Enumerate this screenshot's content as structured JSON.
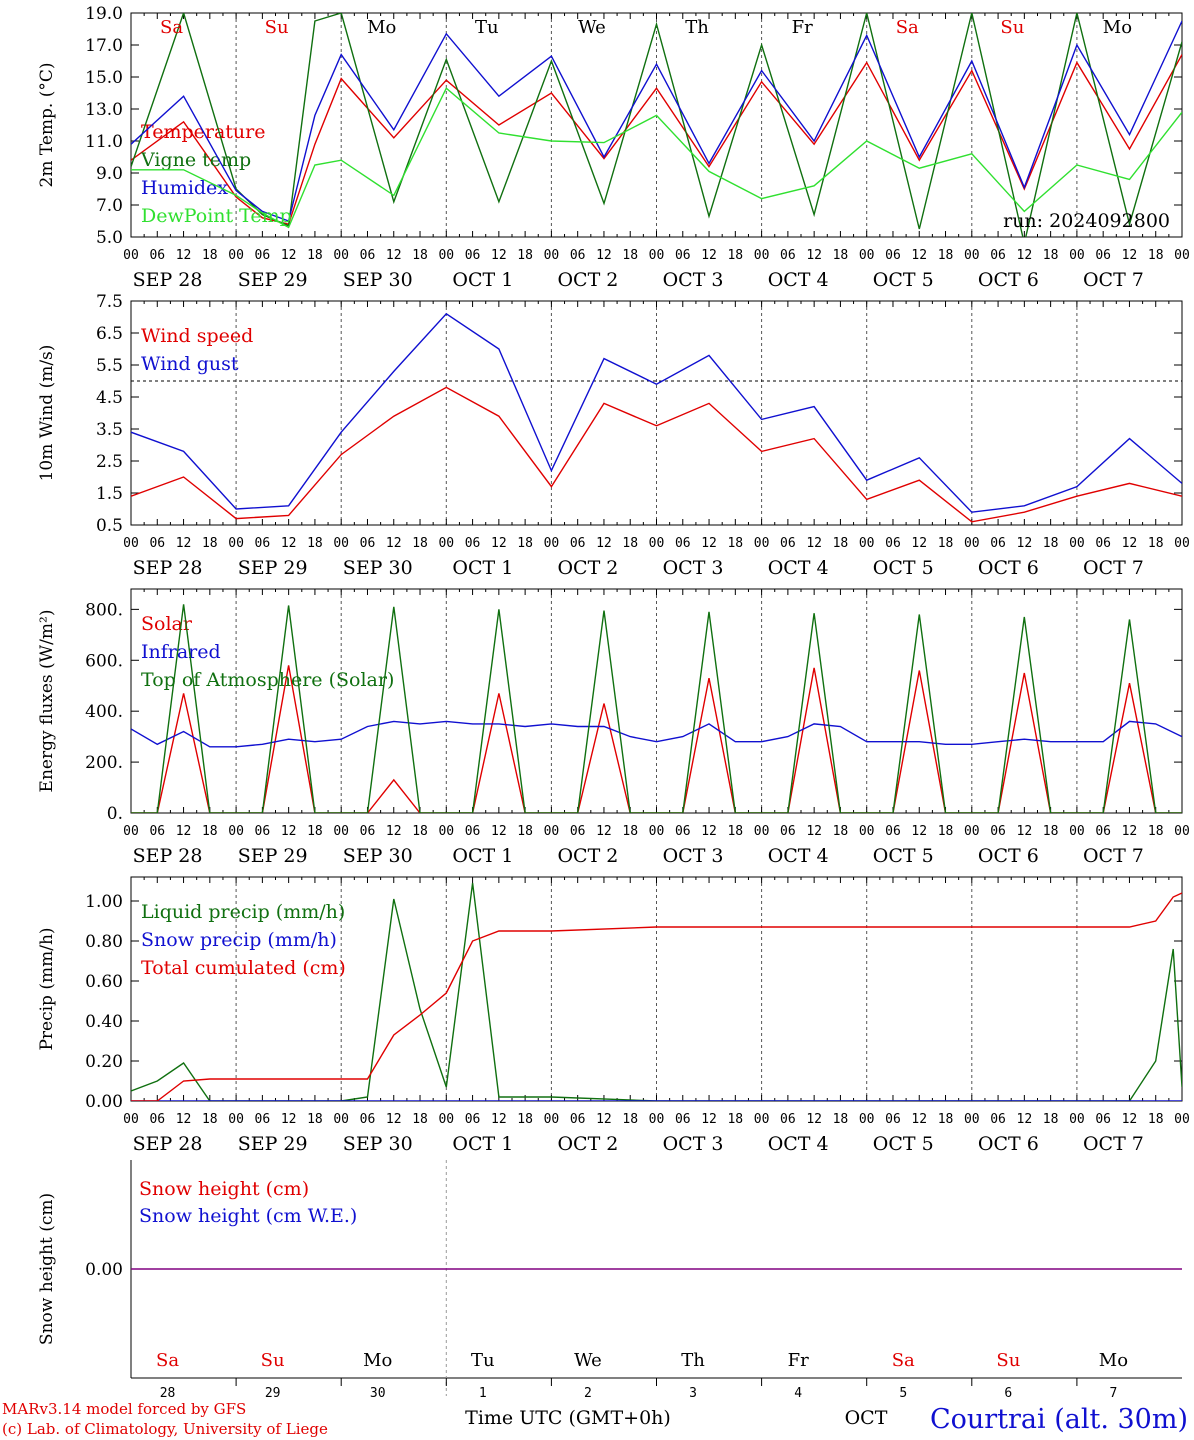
{
  "days": [
    "28",
    "29",
    "30",
    "1",
    "2",
    "3",
    "4",
    "5",
    "6",
    "7"
  ],
  "day_labels": [
    "SEP 28",
    "SEP 29",
    "SEP 30",
    "OCT  1",
    "OCT  2",
    "OCT  3",
    "OCT  4",
    "OCT  5",
    "OCT  6",
    "OCT  7"
  ],
  "weekdays": [
    "Sa",
    "Su",
    "Mo",
    "Tu",
    "We",
    "Th",
    "Fr",
    "Sa",
    "Su",
    "Mo"
  ],
  "weekday_colors": [
    "#e00000",
    "#e00000",
    "#000000",
    "#000000",
    "#000000",
    "#000000",
    "#000000",
    "#e00000",
    "#e00000",
    "#000000"
  ],
  "hour_ticks": [
    "00",
    "06",
    "12",
    "18"
  ],
  "run_label": "run: 2024092800",
  "footer": {
    "model": "MARv3.14 model forced by GFS",
    "lab": "(c) Lab. of Climatology, University of Liege",
    "time_axis": "Time UTC (GMT+0h)",
    "month": "OCT",
    "location": "Courtrai (alt. 30m)"
  },
  "colors": {
    "red": "#e00000",
    "blue": "#1010d0",
    "green": "#107010",
    "lightgreen": "#30e030",
    "purple": "#800080",
    "grid": "#555555"
  },
  "chart_data": [
    {
      "type": "line",
      "ylabel": "2m Temp. (°C)",
      "ylim": [
        5,
        19
      ],
      "yticks": [
        "5.0",
        "7.0",
        "9.0",
        "11.0",
        "13.0",
        "15.0",
        "17.0",
        "19.0"
      ],
      "x": [
        0,
        12,
        24,
        30,
        36,
        42,
        48,
        60,
        72,
        84,
        96,
        108,
        120,
        132,
        144,
        156,
        168,
        180,
        192,
        204,
        216,
        228,
        240
      ],
      "series": [
        {
          "name": "Temperature",
          "color": "red",
          "values": [
            9.8,
            12.2,
            7.5,
            6.2,
            5.8,
            10.8,
            14.9,
            11.2,
            14.8,
            12.0,
            14.0,
            9.9,
            14.3,
            9.4,
            14.7,
            10.8,
            15.9,
            9.8,
            15.4,
            8.0,
            15.9,
            10.5,
            16.4
          ]
        },
        {
          "name": "Vigne temp",
          "color": "green",
          "values": [
            9.4,
            19.0,
            8.0,
            6.4,
            5.7,
            18.5,
            19.0,
            7.2,
            16.1,
            7.2,
            16.0,
            7.1,
            18.3,
            6.3,
            17.0,
            6.4,
            19.0,
            5.5,
            19.0,
            4.6,
            19.0,
            5.8,
            17.2
          ]
        },
        {
          "name": "Humidex",
          "color": "blue",
          "values": [
            10.8,
            13.8,
            7.9,
            6.6,
            6.0,
            12.6,
            16.4,
            11.7,
            17.7,
            13.8,
            16.3,
            10.0,
            15.8,
            9.6,
            15.4,
            11.0,
            17.6,
            10.0,
            16.0,
            8.1,
            17.0,
            11.4,
            18.5
          ]
        },
        {
          "name": "DewPoint Temp",
          "color": "lightgreen",
          "values": [
            9.2,
            9.2,
            7.6,
            6.5,
            5.6,
            9.5,
            9.8,
            7.6,
            14.3,
            11.5,
            11.0,
            10.9,
            12.6,
            9.1,
            7.4,
            8.2,
            11.0,
            9.3,
            10.2,
            6.6,
            9.5,
            8.6,
            12.8
          ]
        }
      ]
    },
    {
      "type": "line",
      "ylabel": "10m Wind (m/s)",
      "ylim": [
        0.5,
        7.5
      ],
      "ref_line": 5.0,
      "yticks": [
        "0.5",
        "1.5",
        "2.5",
        "3.5",
        "4.5",
        "5.5",
        "6.5",
        "7.5"
      ],
      "x": [
        0,
        12,
        24,
        36,
        48,
        60,
        72,
        84,
        96,
        108,
        120,
        132,
        144,
        156,
        168,
        180,
        192,
        204,
        216,
        228,
        240
      ],
      "series": [
        {
          "name": "Wind speed",
          "color": "red",
          "values": [
            1.4,
            2.0,
            0.7,
            0.8,
            2.7,
            3.9,
            4.8,
            3.9,
            1.7,
            4.3,
            3.6,
            4.3,
            2.8,
            3.2,
            1.3,
            1.9,
            0.6,
            0.9,
            1.4,
            1.8,
            1.4
          ]
        },
        {
          "name": "Wind gust",
          "color": "blue",
          "values": [
            3.4,
            2.8,
            1.0,
            1.1,
            3.4,
            5.3,
            7.1,
            6.0,
            2.2,
            5.7,
            4.9,
            5.8,
            3.8,
            4.2,
            1.9,
            2.6,
            0.9,
            1.1,
            1.7,
            3.2,
            1.8
          ]
        }
      ]
    },
    {
      "type": "line",
      "ylabel": "Energy fluxes (W/m²)",
      "ylim": [
        0,
        880
      ],
      "yticks": [
        "0.",
        "200.",
        "400.",
        "600.",
        "800."
      ],
      "x": [
        0,
        6,
        12,
        18,
        24,
        30,
        36,
        42,
        48,
        54,
        60,
        66,
        72,
        78,
        84,
        90,
        96,
        102,
        108,
        114,
        120,
        126,
        132,
        138,
        144,
        150,
        156,
        162,
        168,
        174,
        180,
        186,
        192,
        198,
        204,
        210,
        216,
        222,
        228,
        234,
        240
      ],
      "series": [
        {
          "name": "Solar",
          "color": "red",
          "values": [
            0,
            0,
            470,
            0,
            0,
            0,
            580,
            0,
            0,
            0,
            130,
            0,
            0,
            0,
            470,
            0,
            0,
            0,
            430,
            0,
            0,
            0,
            530,
            0,
            0,
            0,
            570,
            0,
            0,
            0,
            560,
            0,
            0,
            0,
            550,
            0,
            0,
            0,
            510,
            0,
            0
          ]
        },
        {
          "name": "Infrared",
          "color": "blue",
          "values": [
            330,
            270,
            320,
            260,
            260,
            270,
            290,
            280,
            290,
            340,
            360,
            350,
            360,
            350,
            350,
            340,
            350,
            340,
            340,
            300,
            280,
            300,
            350,
            280,
            280,
            300,
            350,
            340,
            280,
            280,
            280,
            270,
            270,
            280,
            290,
            280,
            280,
            280,
            360,
            350,
            300
          ]
        },
        {
          "name": "Top of Atmosphere (Solar)",
          "color": "green",
          "values": [
            0,
            0,
            820,
            0,
            0,
            0,
            815,
            0,
            0,
            0,
            810,
            0,
            0,
            0,
            800,
            0,
            0,
            0,
            795,
            0,
            0,
            0,
            790,
            0,
            0,
            0,
            785,
            0,
            0,
            0,
            780,
            0,
            0,
            0,
            770,
            0,
            0,
            0,
            760,
            0,
            0
          ]
        }
      ]
    },
    {
      "type": "line",
      "ylabel": "Precip (mm/h)",
      "ylim": [
        0,
        1.12
      ],
      "yticks": [
        "0.00",
        "0.20",
        "0.40",
        "0.60",
        "0.80",
        "1.00"
      ],
      "x": [
        0,
        6,
        12,
        18,
        24,
        36,
        48,
        54,
        60,
        66,
        72,
        78,
        84,
        96,
        120,
        144,
        168,
        192,
        216,
        228,
        234,
        238,
        240
      ],
      "series": [
        {
          "name": "Liquid precip (mm/h)",
          "color": "green",
          "values": [
            0.05,
            0.1,
            0.19,
            0.0,
            0.0,
            0.0,
            0.0,
            0.02,
            1.01,
            0.46,
            0.07,
            1.09,
            0.02,
            0.02,
            0.0,
            0.0,
            0.0,
            0.0,
            0.0,
            0.0,
            0.2,
            0.76,
            0.07
          ]
        },
        {
          "name": "Snow precip (mm/h)",
          "color": "blue",
          "values": [
            0,
            0,
            0,
            0,
            0,
            0,
            0,
            0,
            0,
            0,
            0,
            0,
            0,
            0,
            0,
            0,
            0,
            0,
            0,
            0,
            0,
            0,
            0
          ]
        },
        {
          "name": "Total cumulated (cm)",
          "color": "red",
          "values": [
            0.0,
            0.0,
            0.1,
            0.11,
            0.11,
            0.11,
            0.11,
            0.11,
            0.33,
            0.43,
            0.54,
            0.8,
            0.85,
            0.85,
            0.87,
            0.87,
            0.87,
            0.87,
            0.87,
            0.87,
            0.9,
            1.02,
            1.04
          ]
        }
      ]
    },
    {
      "type": "line",
      "ylabel": "Snow height (cm)",
      "ylim": [
        -1,
        1
      ],
      "yticks": [
        "0.00"
      ],
      "x": [
        0,
        240
      ],
      "series": [
        {
          "name": "Snow height (cm)",
          "color": "red",
          "values": [
            0,
            0
          ]
        },
        {
          "name": "Snow height (cm W.E.)",
          "color": "blue",
          "values": [
            0,
            0
          ]
        }
      ]
    }
  ]
}
